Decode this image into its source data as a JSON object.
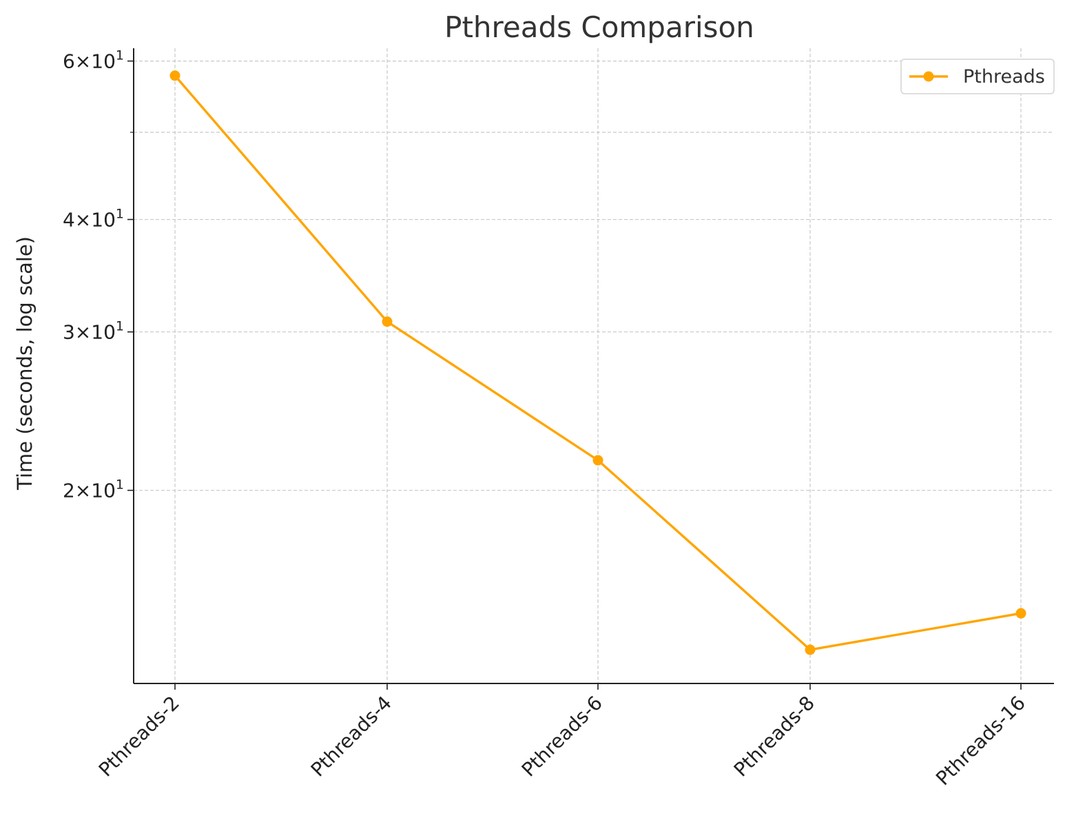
{
  "chart_data": {
    "type": "line",
    "title": "Pthreads Comparison",
    "xlabel": "",
    "ylabel": "Time (seconds, log scale)",
    "yscale": "log",
    "ylim": [
      12.2,
      62
    ],
    "categories": [
      "Pthreads-2",
      "Pthreads-4",
      "Pthreads-6",
      "Pthreads-8",
      "Pthreads-16"
    ],
    "series": [
      {
        "name": "Pthreads",
        "values": [
          57.8,
          30.8,
          21.6,
          13.3,
          14.6
        ],
        "color": "#FFA500"
      }
    ],
    "yticks": [
      {
        "value": 20,
        "mantissa": "2",
        "base": "10",
        "exponent": "1"
      },
      {
        "value": 30,
        "mantissa": "3",
        "base": "10",
        "exponent": "1"
      },
      {
        "value": 40,
        "mantissa": "4",
        "base": "10",
        "exponent": "1"
      },
      {
        "value": 60,
        "mantissa": "6",
        "base": "10",
        "exponent": "1"
      }
    ],
    "minor_ytick_values": [
      50
    ],
    "grid": true,
    "legend_position": "top-right",
    "marker": "circle"
  }
}
